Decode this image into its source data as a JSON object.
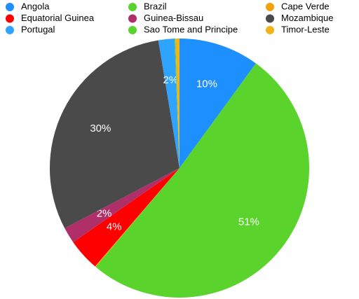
{
  "chart_data": {
    "type": "pie",
    "categories": [
      "Angola",
      "Brazil",
      "Cape Verde",
      "Equatorial Guinea",
      "Guinea-Bissau",
      "Mozambique",
      "Portugal",
      "Sao Tome and Principe",
      "Timor-Leste"
    ],
    "values": [
      10,
      51,
      0.1,
      4,
      2,
      30,
      2,
      0.1,
      0.5
    ],
    "value_labels": [
      "10%",
      "51%",
      null,
      "4%",
      "2%",
      "30%",
      "2%",
      null,
      null
    ],
    "colors": [
      "#1e8fff",
      "#5ad32c",
      "#f0a20a",
      "#ff0000",
      "#b12f68",
      "#4a4a4a",
      "#2ea3ff",
      "#5ad32c",
      "#f3b31a"
    ],
    "legend": "top"
  }
}
